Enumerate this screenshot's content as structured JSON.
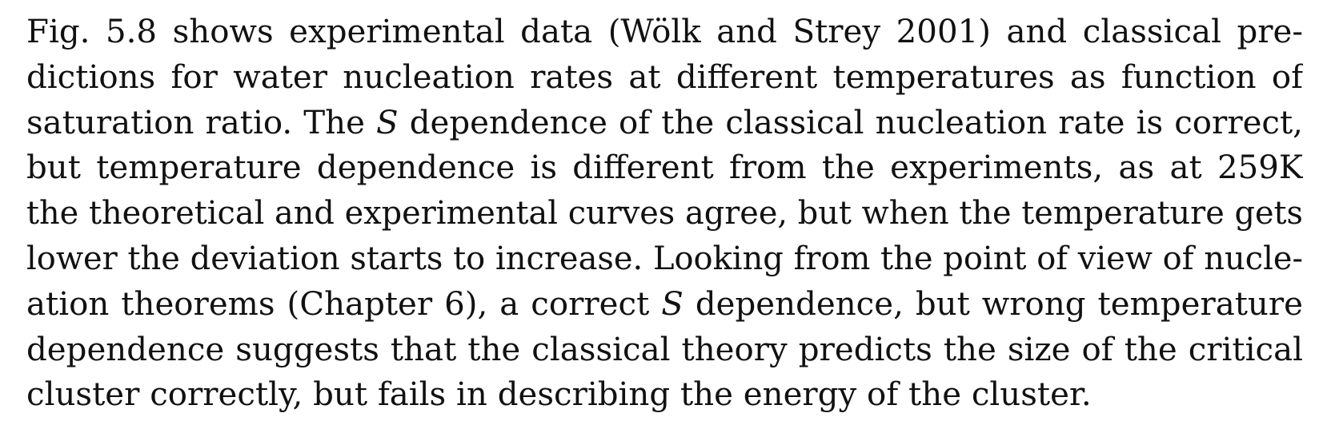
{
  "paragraph": {
    "lines": [
      {
        "parts": [
          "Fig. 5.8 shows experimental data (Wölk and Strey 2001) and classical pre-"
        ]
      },
      {
        "parts": [
          "dictions for water nucleation rates at different temperatures as function of"
        ]
      },
      {
        "parts": [
          "saturation ratio. The ",
          "S",
          " dependence of the classical nucleation rate is correct,"
        ]
      },
      {
        "parts": [
          "but temperature dependence is different from the experiments, as at 259K"
        ]
      },
      {
        "parts": [
          "the theoretical and experimental curves agree, but when the temperature gets"
        ]
      },
      {
        "parts": [
          "lower the deviation starts to increase. Looking from the point of view of nucle-"
        ]
      },
      {
        "parts": [
          "ation theorems (Chapter 6), a correct ",
          "S",
          " dependence, but wrong temperature"
        ]
      },
      {
        "parts": [
          "dependence suggests that the classical theory predicts the size of the critical"
        ]
      },
      {
        "parts": [
          "cluster correctly, but fails in describing the energy of the cluster."
        ]
      }
    ]
  }
}
